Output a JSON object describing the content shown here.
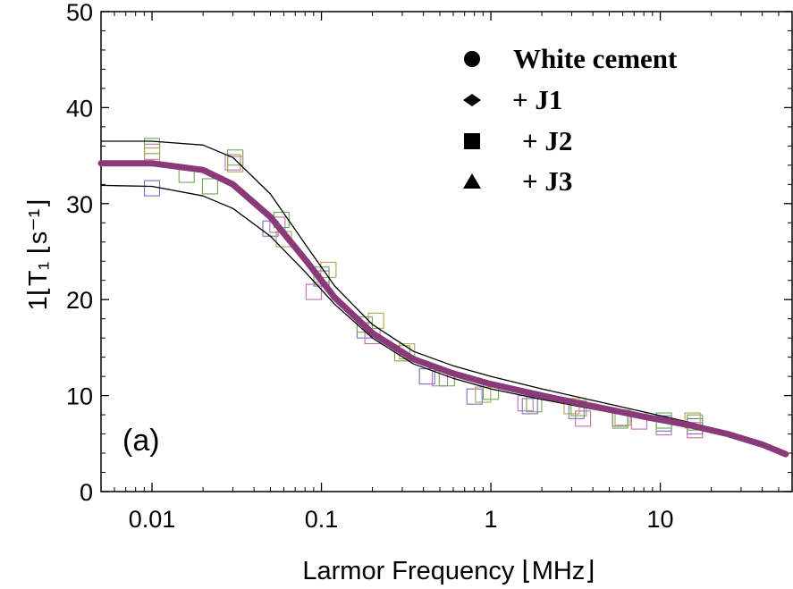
{
  "chart_data": {
    "type": "scatter",
    "xscale": "log",
    "xlim": [
      0.005,
      60
    ],
    "ylim": [
      0,
      50
    ],
    "xticks": [
      {
        "value": 0.01,
        "label": "0.01"
      },
      {
        "value": 0.1,
        "label": "0.1"
      },
      {
        "value": 1,
        "label": "1"
      },
      {
        "value": 10,
        "label": "10"
      }
    ],
    "yticks": [
      {
        "value": 0,
        "label": "0"
      },
      {
        "value": 10,
        "label": "10"
      },
      {
        "value": 20,
        "label": "20"
      },
      {
        "value": 30,
        "label": "30"
      },
      {
        "value": 40,
        "label": "40"
      },
      {
        "value": 50,
        "label": "50"
      }
    ],
    "xlabel": "Larmor Frequency ⌊MHz⌋",
    "ylabel": "1⌊T₁ ⌊s⁻¹⌋",
    "panel_label": "(a)",
    "legend": {
      "placement": "top-right",
      "entries": [
        {
          "label": "White cement",
          "marker": "circle"
        },
        {
          "label": "+ J1",
          "marker": "diamond"
        },
        {
          "label": " + J2",
          "marker": "square"
        },
        {
          "label": " + J3",
          "marker": "triangle"
        }
      ]
    },
    "series": [
      {
        "color": "#7a6cc0",
        "points": [
          [
            0.01,
            31.6
          ],
          [
            0.05,
            27.4
          ],
          [
            0.1,
            22.2
          ],
          [
            0.18,
            16.8
          ],
          [
            0.42,
            12.0
          ],
          [
            0.8,
            9.9
          ],
          [
            1.7,
            8.9
          ],
          [
            3.2,
            8.4
          ],
          [
            5.8,
            7.6
          ],
          [
            10.5,
            7.1
          ],
          [
            16,
            6.8
          ]
        ]
      },
      {
        "color": "#bf72ad",
        "points": [
          [
            0.01,
            35.4
          ],
          [
            0.03,
            34.3
          ],
          [
            0.055,
            27.8
          ],
          [
            0.09,
            20.8
          ],
          [
            0.2,
            16.2
          ],
          [
            0.5,
            11.8
          ],
          [
            1.6,
            9.2
          ],
          [
            3.5,
            7.6
          ],
          [
            7.5,
            7.3
          ],
          [
            10.5,
            6.7
          ],
          [
            16,
            6.4
          ]
        ]
      },
      {
        "color": "#6ea851",
        "points": [
          [
            0.01,
            36.0
          ],
          [
            0.016,
            33.0
          ],
          [
            0.022,
            31.8
          ],
          [
            0.031,
            34.8
          ],
          [
            0.058,
            28.3
          ],
          [
            0.1,
            22.6
          ],
          [
            0.18,
            17.4
          ],
          [
            0.3,
            14.4
          ],
          [
            0.55,
            11.8
          ],
          [
            1.0,
            10.4
          ],
          [
            1.8,
            9.1
          ],
          [
            3.3,
            8.7
          ],
          [
            5.8,
            7.4
          ],
          [
            10.5,
            7.4
          ],
          [
            16,
            7.2
          ]
        ]
      },
      {
        "color": "#b0a050",
        "points": [
          [
            0.01,
            35.0
          ],
          [
            0.031,
            34.1
          ],
          [
            0.06,
            26.3
          ],
          [
            0.11,
            23.1
          ],
          [
            0.21,
            17.8
          ],
          [
            0.32,
            14.6
          ],
          [
            0.9,
            10.1
          ],
          [
            3.0,
            8.9
          ],
          [
            6.0,
            7.7
          ],
          [
            15.5,
            7.4
          ]
        ]
      }
    ],
    "fit_curve": [
      [
        0.005,
        34.2
      ],
      [
        0.01,
        34.2
      ],
      [
        0.02,
        33.5
      ],
      [
        0.03,
        32.0
      ],
      [
        0.05,
        28.6
      ],
      [
        0.08,
        24.2
      ],
      [
        0.12,
        20.2
      ],
      [
        0.2,
        16.5
      ],
      [
        0.35,
        13.8
      ],
      [
        0.6,
        12.3
      ],
      [
        1.0,
        11.2
      ],
      [
        2.0,
        10.0
      ],
      [
        4.0,
        8.9
      ],
      [
        8.0,
        7.8
      ],
      [
        15.0,
        6.9
      ],
      [
        25.0,
        6.0
      ],
      [
        40.0,
        4.9
      ],
      [
        55.0,
        3.9
      ]
    ],
    "upper_curve": [
      [
        0.005,
        36.5
      ],
      [
        0.01,
        36.5
      ],
      [
        0.02,
        36.1
      ],
      [
        0.03,
        34.8
      ],
      [
        0.05,
        31.0
      ],
      [
        0.08,
        25.8
      ],
      [
        0.12,
        21.4
      ],
      [
        0.2,
        17.4
      ],
      [
        0.35,
        14.6
      ],
      [
        0.6,
        13.1
      ],
      [
        1.0,
        12.0
      ],
      [
        2.0,
        10.7
      ],
      [
        4.0,
        9.5
      ],
      [
        8.0,
        8.3
      ],
      [
        15.0,
        7.2
      ],
      [
        25.0,
        6.2
      ],
      [
        40.0,
        5.0
      ],
      [
        55.0,
        3.9
      ]
    ],
    "lower_curve": [
      [
        0.005,
        31.9
      ],
      [
        0.01,
        31.8
      ],
      [
        0.02,
        30.8
      ],
      [
        0.03,
        29.5
      ],
      [
        0.05,
        26.6
      ],
      [
        0.08,
        22.9
      ],
      [
        0.12,
        19.5
      ],
      [
        0.2,
        16.0
      ],
      [
        0.35,
        13.3
      ],
      [
        0.6,
        11.8
      ],
      [
        1.0,
        10.7
      ],
      [
        2.0,
        9.6
      ],
      [
        4.0,
        8.6
      ],
      [
        8.0,
        7.6
      ],
      [
        15.0,
        6.7
      ],
      [
        25.0,
        5.9
      ],
      [
        40.0,
        4.8
      ],
      [
        55.0,
        3.9
      ]
    ],
    "fit_color": "#8a3a78"
  }
}
